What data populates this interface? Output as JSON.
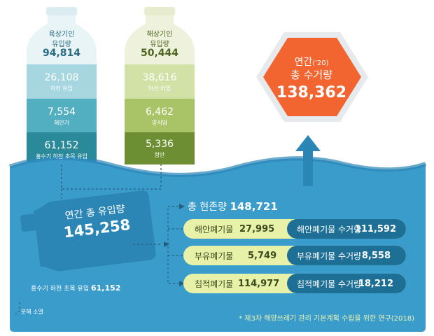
{
  "land_bottle": {
    "title_line1": "육상기인",
    "title_line2": "유입량",
    "total": "94,814",
    "bands": [
      {
        "value": "26,108",
        "label": "하천 유입"
      },
      {
        "value": "7,554",
        "label": "해안가"
      },
      {
        "value": "61,152",
        "label": "홍수기 하천 초목 유입"
      }
    ]
  },
  "sea_bottle": {
    "title_line1": "해상기인",
    "title_line2": "유입량",
    "total": "50,444",
    "bands": [
      {
        "value": "38,616",
        "label": "어선·어업"
      },
      {
        "value": "6,462",
        "label": "양식업"
      },
      {
        "value": "5,336",
        "label": "항만"
      }
    ]
  },
  "annual_collection": {
    "title_prefix": "연간",
    "year": "('20)",
    "title_line2": "총 수거량",
    "value": "138,362"
  },
  "annual_inflow": {
    "label": "연간 총 유입량",
    "value": "145,258"
  },
  "total_stock": {
    "label": "총 현존량",
    "value": "148,721"
  },
  "rows": [
    {
      "left_label": "해안폐기물",
      "left_value": "27,995",
      "right_label": "해안폐기물 수거량",
      "right_value": "111,592"
    },
    {
      "left_label": "부유폐기물",
      "left_value": "5,749",
      "right_label": "부유폐기물 수거량",
      "right_value": "8,558"
    },
    {
      "left_label": "침적폐기물",
      "left_value": "114,977",
      "right_label": "침적폐기물 수거량",
      "right_value": "18,212"
    }
  ],
  "flood_inflow": {
    "label": "홍수기 하천 초목 유입",
    "value": "61,152"
  },
  "decomposition": "분해 소멸",
  "source_note": "* 제3차 해양쓰레기 관리 기본계획 수립을 위한 연구(2018)",
  "colors": {
    "sea": "#3a9ccb",
    "sea_dark": "#2b86b6",
    "land_light": "#a6d6df",
    "land_mid": "#52afc0",
    "land_dark": "#2b8a99",
    "sea_bottle_light": "#d2e2a7",
    "sea_bottle_mid": "#a9c466",
    "sea_bottle_dark": "#6d8e32",
    "orange": "#f26430",
    "pill_light": "#e7f2a8",
    "pill_dark": "#1e6f95"
  }
}
